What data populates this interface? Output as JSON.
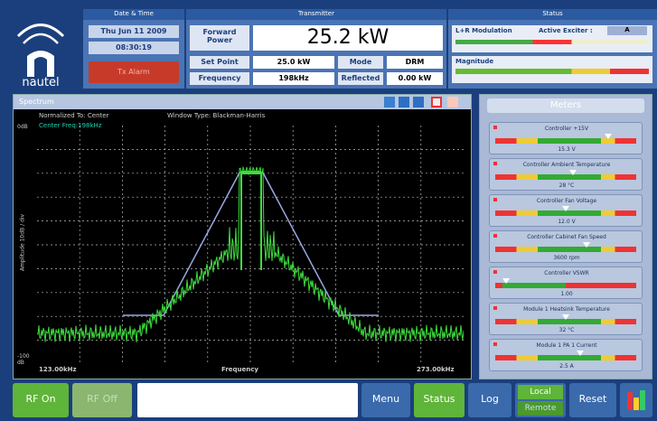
{
  "header": {
    "logo": "nautel",
    "date_time": {
      "title": "Date & Time",
      "date": "Thu Jun 11 2009",
      "time": "08:30:19",
      "alarm": "Tx Alarm"
    },
    "transmitter": {
      "title": "Transmitter",
      "forward_power_label": "Forward Power",
      "forward_power": "25.2 kW",
      "set_point_label": "Set Point",
      "set_point": "25.0 kW",
      "mode_label": "Mode",
      "mode": "DRM",
      "frequency_label": "Frequency",
      "frequency": "198kHz",
      "reflected_label": "Reflected",
      "reflected": "0.00 kW"
    },
    "status": {
      "title": "Status",
      "modulation": "L+R Modulation",
      "exciter_label": "Active Exciter :",
      "exciter": "A",
      "magnitude": "Magnitude"
    }
  },
  "spectrum": {
    "title": "Spectrum",
    "normalized": "Normalized To: Center",
    "window": "Window Type: Blackman-Harris",
    "center": "Center Freq:198kHz",
    "top_label": "0dB",
    "y_label": "Amplitude 10dB / div",
    "bottom_label": "-100 dB",
    "x_start": "123.00kHz",
    "x_label": "Frequency",
    "x_end": "273.00kHz"
  },
  "meters": {
    "title": "Meters",
    "items": [
      {
        "name": "Controller +15V",
        "value": "15.3 V"
      },
      {
        "name": "Controller Ambient Temperature",
        "value": "28 °C"
      },
      {
        "name": "Controller Fan Voltage",
        "value": "12.0 V"
      },
      {
        "name": "Controller Cabinet Fan Speed",
        "value": "3600 rpm"
      },
      {
        "name": "Controller VSWR",
        "value": "1.00"
      },
      {
        "name": "Module 1 Heatsink Temperature",
        "value": "32 °C"
      },
      {
        "name": "Module 1 PA 1 Current",
        "value": "2.5 A"
      }
    ]
  },
  "buttons": {
    "rf_on": "RF On",
    "rf_off": "RF Off",
    "menu": "Menu",
    "status": "Status",
    "log": "Log",
    "local": "Local",
    "remote": "Remote",
    "reset": "Reset"
  }
}
